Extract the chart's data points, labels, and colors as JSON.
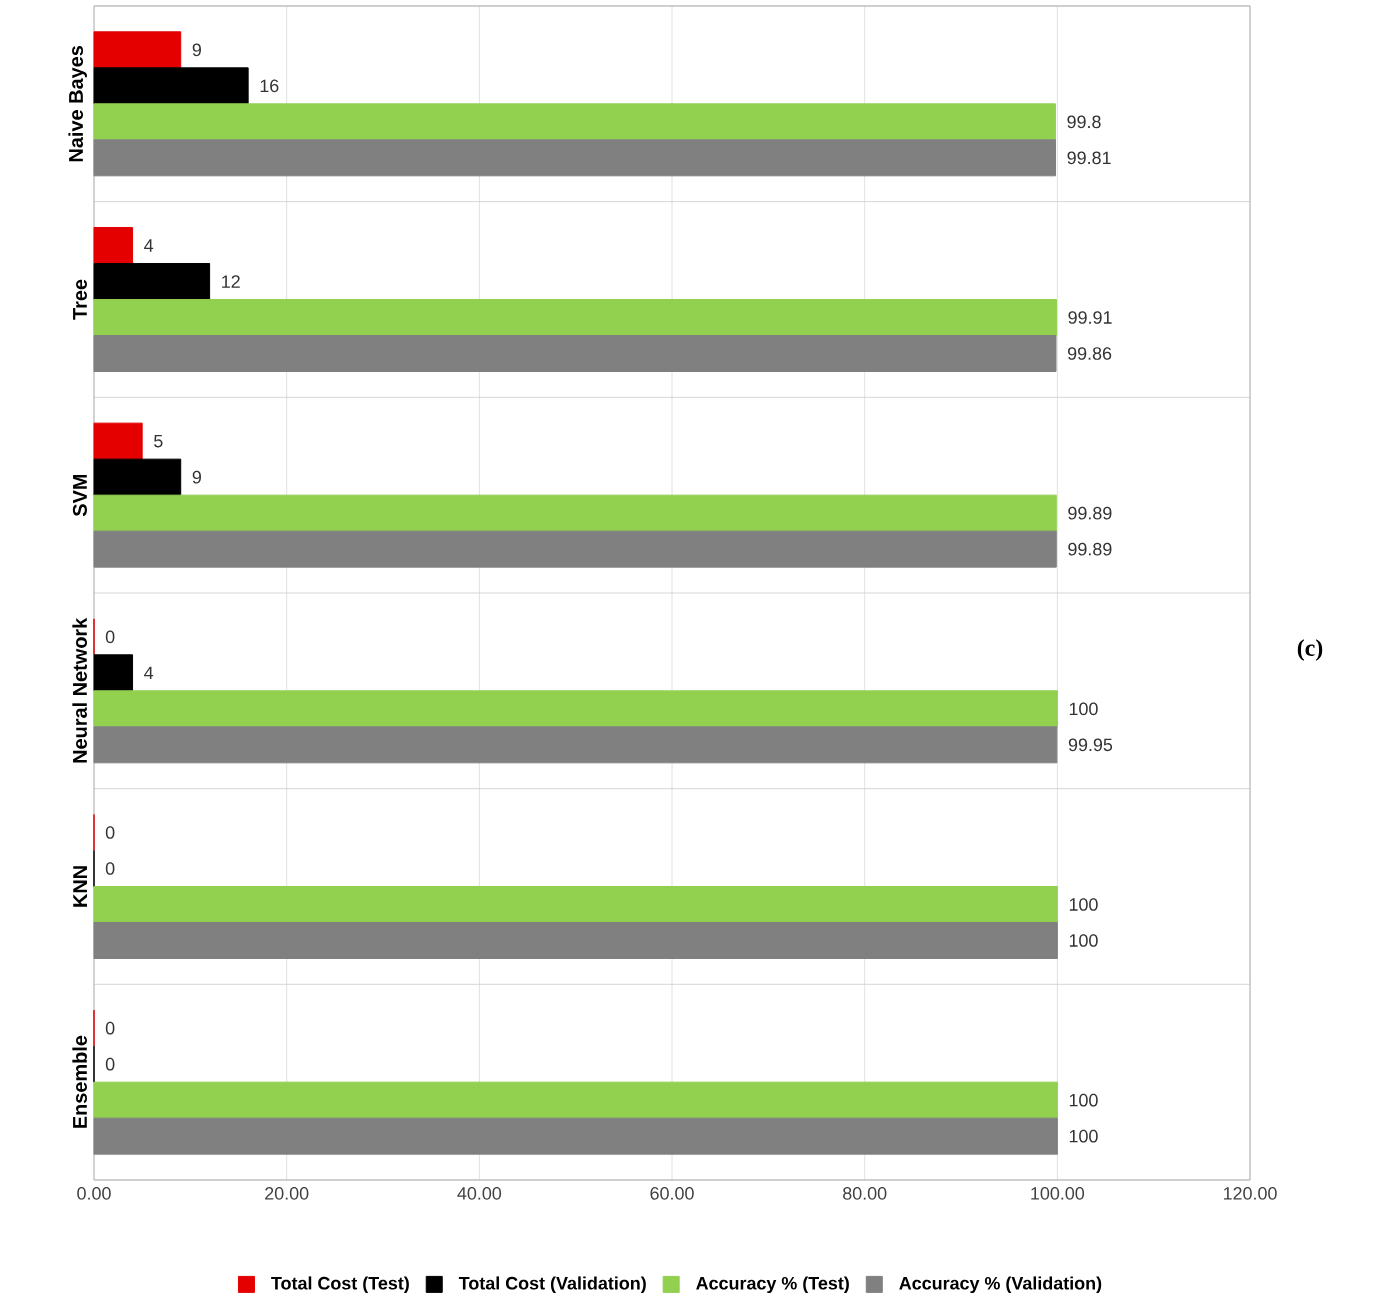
{
  "chart_data": {
    "type": "bar",
    "orientation": "horizontal",
    "categories": [
      "Naive Bayes",
      "Tree",
      "SVM",
      "Neural Network",
      "KNN",
      "Ensemble"
    ],
    "series": [
      {
        "name": "Total Cost (Test)",
        "color": "#e50000",
        "values": [
          9,
          4,
          5,
          0,
          0,
          0
        ]
      },
      {
        "name": "Total Cost (Validation)",
        "color": "#000000",
        "values": [
          16,
          12,
          9,
          4,
          0,
          0
        ]
      },
      {
        "name": "Accuracy % (Test)",
        "color": "#92d050",
        "values": [
          99.8,
          99.91,
          99.89,
          100,
          100,
          100
        ]
      },
      {
        "name": "Accuracy % (Validation)",
        "color": "#808080",
        "values": [
          99.81,
          99.86,
          99.89,
          99.95,
          100,
          100
        ]
      }
    ],
    "xlim": [
      0,
      120
    ],
    "xticks": [
      {
        "value": 0,
        "label": "0.00"
      },
      {
        "value": 20,
        "label": "20.00"
      },
      {
        "value": 40,
        "label": "40.00"
      },
      {
        "value": 60,
        "label": "60.00"
      },
      {
        "value": 80,
        "label": "80.00"
      },
      {
        "value": 100,
        "label": "100.00"
      },
      {
        "value": 120,
        "label": "120.00"
      }
    ],
    "grid": "x",
    "legend": "bottom",
    "data_labels": true,
    "annotations": [
      "(c)"
    ]
  }
}
